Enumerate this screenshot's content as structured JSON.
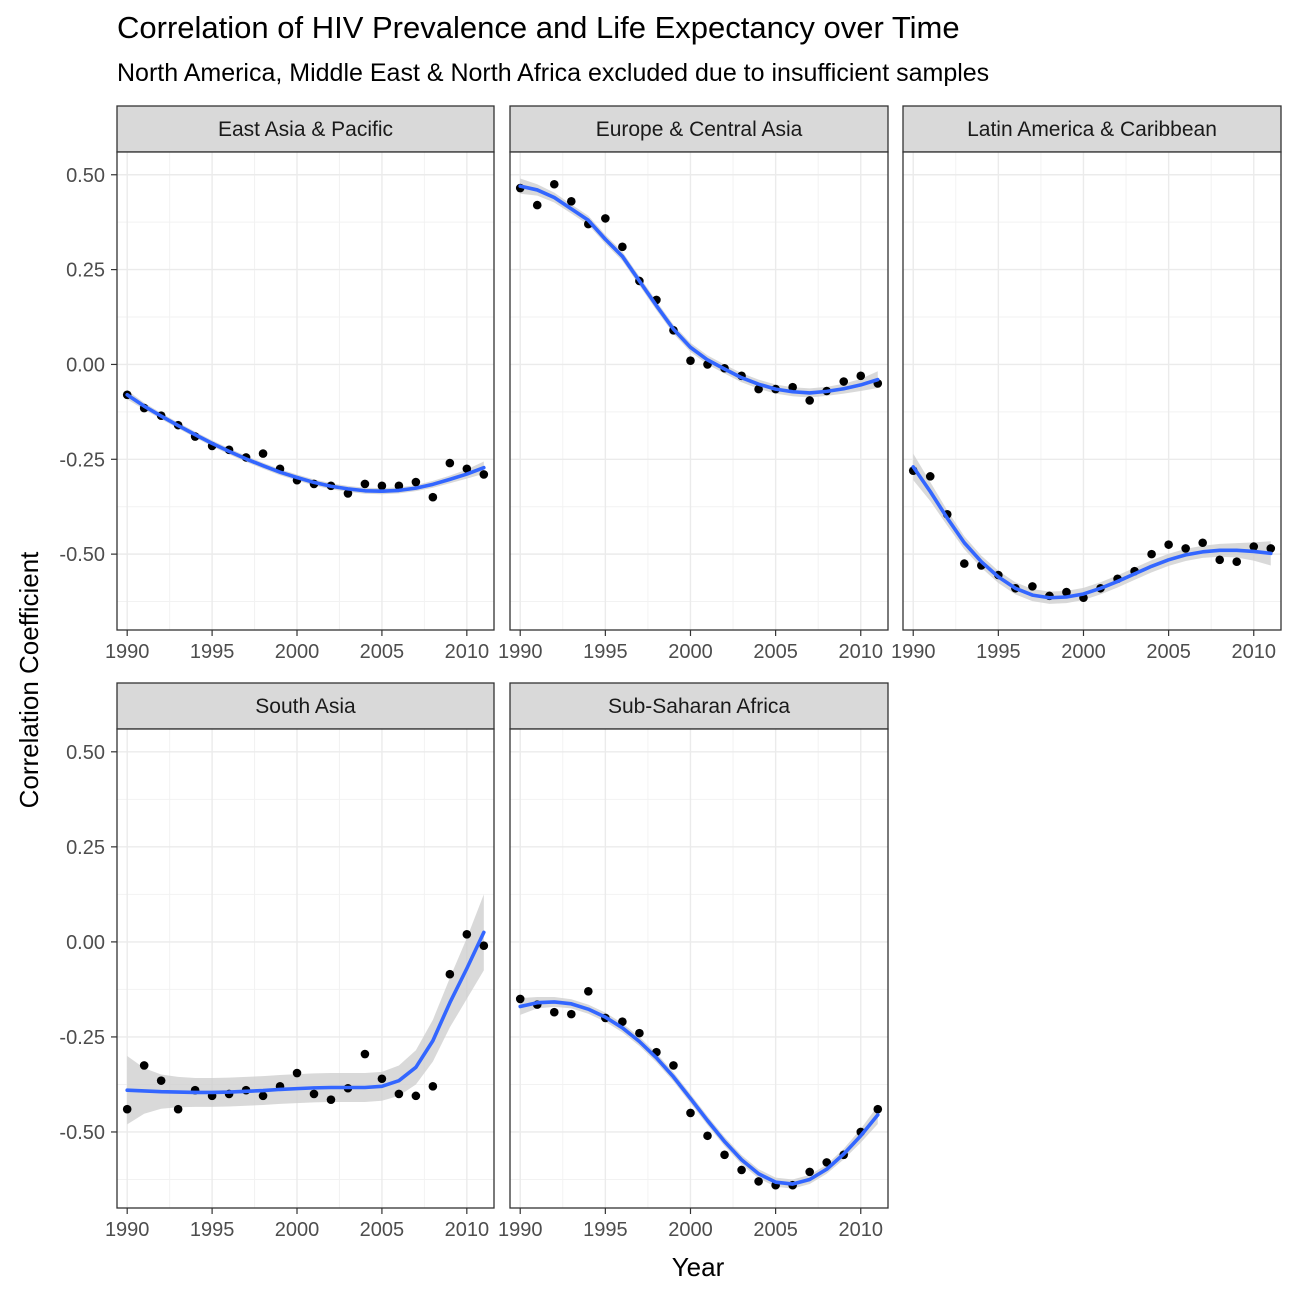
{
  "title": "Correlation of HIV Prevalence and Life Expectancy over Time",
  "subtitle": "North America, Middle East & North Africa excluded due to insufficient samples",
  "chart_data": {
    "type": "scatter",
    "xlabel": "Year",
    "ylabel": "Correlation Coefficient",
    "xlim": [
      1989.4,
      2011.6
    ],
    "ylim": [
      -0.7,
      0.56
    ],
    "x_ticks": [
      1990,
      1995,
      2000,
      2005,
      2010
    ],
    "x_tick_labels": [
      "1990",
      "1995",
      "2000",
      "2005",
      "2010"
    ],
    "y_ticks": [
      0.5,
      0.25,
      0,
      -0.25,
      -0.5
    ],
    "y_tick_labels": [
      "0.50",
      "0.25",
      "0.00",
      "-0.25",
      "-0.50"
    ],
    "grid": true,
    "point_color": "#000000",
    "smooth_color": "#3366FF",
    "ribbon_color": "#CCCCCC",
    "strip_fill": "#D9D9D9",
    "facets": [
      {
        "name": "East Asia & Pacific",
        "x": [
          1990,
          1991,
          1992,
          1993,
          1994,
          1995,
          1996,
          1997,
          1998,
          1999,
          2000,
          2001,
          2002,
          2003,
          2004,
          2005,
          2006,
          2007,
          2008,
          2009,
          2010,
          2011
        ],
        "y": [
          -0.08,
          -0.115,
          -0.135,
          -0.16,
          -0.19,
          -0.215,
          -0.225,
          -0.245,
          -0.235,
          -0.275,
          -0.305,
          -0.315,
          -0.32,
          -0.34,
          -0.315,
          -0.32,
          -0.32,
          -0.31,
          -0.35,
          -0.26,
          -0.275,
          -0.29
        ],
        "smooth": [
          -0.08,
          -0.11,
          -0.136,
          -0.161,
          -0.185,
          -0.208,
          -0.229,
          -0.249,
          -0.267,
          -0.284,
          -0.298,
          -0.311,
          -0.321,
          -0.328,
          -0.333,
          -0.334,
          -0.332,
          -0.326,
          -0.316,
          -0.303,
          -0.289,
          -0.272
        ],
        "band": [
          0.012,
          0.009,
          0.008,
          0.008,
          0.008,
          0.008,
          0.008,
          0.008,
          0.008,
          0.008,
          0.008,
          0.008,
          0.008,
          0.008,
          0.008,
          0.008,
          0.008,
          0.008,
          0.009,
          0.01,
          0.012,
          0.016
        ]
      },
      {
        "name": "Europe & Central Asia",
        "x": [
          1990,
          1991,
          1992,
          1993,
          1994,
          1995,
          1996,
          1997,
          1998,
          1999,
          2000,
          2001,
          2002,
          2003,
          2004,
          2005,
          2006,
          2007,
          2008,
          2009,
          2010,
          2011
        ],
        "y": [
          0.465,
          0.42,
          0.475,
          0.43,
          0.37,
          0.385,
          0.31,
          0.22,
          0.17,
          0.09,
          0.01,
          0.0,
          -0.01,
          -0.03,
          -0.065,
          -0.065,
          -0.06,
          -0.095,
          -0.07,
          -0.045,
          -0.03,
          -0.05
        ],
        "smooth": [
          0.47,
          0.46,
          0.44,
          0.41,
          0.38,
          0.33,
          0.285,
          0.22,
          0.155,
          0.093,
          0.045,
          0.012,
          -0.012,
          -0.035,
          -0.052,
          -0.065,
          -0.072,
          -0.075,
          -0.071,
          -0.064,
          -0.054,
          -0.04
        ],
        "band": [
          0.02,
          0.015,
          0.013,
          0.012,
          0.012,
          0.012,
          0.012,
          0.012,
          0.012,
          0.012,
          0.012,
          0.012,
          0.012,
          0.012,
          0.012,
          0.012,
          0.012,
          0.012,
          0.012,
          0.013,
          0.016,
          0.022
        ]
      },
      {
        "name": "Latin America & Caribbean",
        "x": [
          1990,
          1991,
          1992,
          1993,
          1994,
          1995,
          1996,
          1997,
          1998,
          1999,
          2000,
          2001,
          2002,
          2003,
          2004,
          2005,
          2006,
          2007,
          2008,
          2009,
          2010,
          2011
        ],
        "y": [
          -0.28,
          -0.295,
          -0.395,
          -0.525,
          -0.53,
          -0.555,
          -0.59,
          -0.585,
          -0.61,
          -0.6,
          -0.615,
          -0.59,
          -0.565,
          -0.545,
          -0.5,
          -0.475,
          -0.485,
          -0.47,
          -0.515,
          -0.52,
          -0.48,
          -0.485
        ],
        "smooth": [
          -0.27,
          -0.335,
          -0.405,
          -0.47,
          -0.52,
          -0.56,
          -0.59,
          -0.608,
          -0.615,
          -0.613,
          -0.605,
          -0.59,
          -0.572,
          -0.552,
          -0.532,
          -0.515,
          -0.502,
          -0.494,
          -0.49,
          -0.49,
          -0.493,
          -0.498
        ],
        "band": [
          0.035,
          0.025,
          0.02,
          0.017,
          0.016,
          0.016,
          0.016,
          0.016,
          0.016,
          0.016,
          0.016,
          0.016,
          0.016,
          0.016,
          0.016,
          0.016,
          0.016,
          0.016,
          0.017,
          0.019,
          0.024,
          0.032
        ]
      },
      {
        "name": "South Asia",
        "x": [
          1990,
          1991,
          1992,
          1993,
          1994,
          1995,
          1996,
          1997,
          1998,
          1999,
          2000,
          2001,
          2002,
          2003,
          2004,
          2005,
          2006,
          2007,
          2008,
          2009,
          2010,
          2011
        ],
        "y": [
          -0.44,
          -0.325,
          -0.365,
          -0.44,
          -0.39,
          -0.405,
          -0.4,
          -0.39,
          -0.405,
          -0.38,
          -0.345,
          -0.4,
          -0.415,
          -0.385,
          -0.295,
          -0.36,
          -0.4,
          -0.405,
          -0.38,
          -0.085,
          0.02,
          -0.01
        ],
        "smooth": [
          -0.39,
          -0.392,
          -0.394,
          -0.395,
          -0.396,
          -0.396,
          -0.395,
          -0.393,
          -0.391,
          -0.388,
          -0.386,
          -0.384,
          -0.383,
          -0.383,
          -0.383,
          -0.38,
          -0.365,
          -0.33,
          -0.26,
          -0.16,
          -0.07,
          0.025
        ],
        "band": [
          0.09,
          0.06,
          0.045,
          0.04,
          0.038,
          0.038,
          0.038,
          0.038,
          0.038,
          0.038,
          0.038,
          0.038,
          0.038,
          0.038,
          0.038,
          0.038,
          0.04,
          0.045,
          0.055,
          0.065,
          0.08,
          0.1
        ]
      },
      {
        "name": "Sub-Saharan Africa",
        "x": [
          1990,
          1991,
          1992,
          1993,
          1994,
          1995,
          1996,
          1997,
          1998,
          1999,
          2000,
          2001,
          2002,
          2003,
          2004,
          2005,
          2006,
          2007,
          2008,
          2009,
          2010,
          2011
        ],
        "y": [
          -0.15,
          -0.165,
          -0.185,
          -0.19,
          -0.13,
          -0.2,
          -0.21,
          -0.24,
          -0.29,
          -0.325,
          -0.45,
          -0.51,
          -0.56,
          -0.6,
          -0.63,
          -0.64,
          -0.64,
          -0.605,
          -0.58,
          -0.56,
          -0.5,
          -0.44
        ],
        "smooth": [
          -0.17,
          -0.16,
          -0.158,
          -0.163,
          -0.177,
          -0.198,
          -0.226,
          -0.262,
          -0.305,
          -0.355,
          -0.412,
          -0.47,
          -0.525,
          -0.573,
          -0.61,
          -0.632,
          -0.637,
          -0.625,
          -0.598,
          -0.558,
          -0.51,
          -0.455
        ],
        "band": [
          0.022,
          0.015,
          0.013,
          0.012,
          0.012,
          0.012,
          0.012,
          0.012,
          0.012,
          0.012,
          0.012,
          0.012,
          0.012,
          0.012,
          0.012,
          0.012,
          0.012,
          0.012,
          0.012,
          0.014,
          0.018,
          0.024
        ]
      }
    ]
  }
}
